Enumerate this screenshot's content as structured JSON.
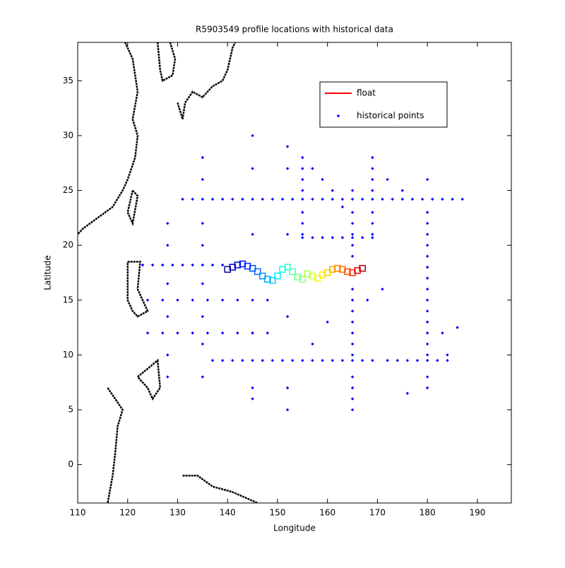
{
  "chart_data": {
    "type": "scatter",
    "title": "R5903549 profile locations with historical data",
    "x_label": "Longitude",
    "y_label": "Latitude",
    "xlim": [
      110,
      196.8
    ],
    "ylim": [
      -3.5,
      38.5
    ],
    "xticks": [
      110,
      120,
      130,
      140,
      150,
      160,
      170,
      180,
      190
    ],
    "yticks": [
      0,
      5,
      10,
      15,
      20,
      25,
      30,
      35
    ],
    "grid": false,
    "legend_position": "upper right",
    "series": [
      {
        "name": "float",
        "color": "#ff0000",
        "x": [
          140,
          141,
          142,
          143,
          144,
          145,
          146,
          147,
          148,
          149,
          150,
          151,
          152,
          153,
          154,
          155,
          156,
          157,
          158,
          159,
          160,
          161,
          162,
          163,
          164,
          165,
          166,
          167
        ],
        "y": [
          17.8,
          18,
          18.2,
          18.3,
          18.1,
          17.9,
          17.6,
          17.2,
          16.9,
          16.8,
          17.2,
          17.8,
          18,
          17.6,
          17.1,
          16.9,
          17.4,
          17.2,
          17,
          17.3,
          17.5,
          17.8,
          17.9,
          17.8,
          17.6,
          17.5,
          17.7,
          17.9
        ],
        "point_colors": [
          "#00008f",
          "#0000bf",
          "#0000ef",
          "#0010ff",
          "#0030ff",
          "#0050ff",
          "#0070ff",
          "#0090ff",
          "#00afff",
          "#00cfff",
          "#00efff",
          "#10ffef",
          "#30ffcf",
          "#50ffaf",
          "#70ff8f",
          "#8fff70",
          "#afff50",
          "#cfff30",
          "#efff10",
          "#ffef00",
          "#ffcf00",
          "#ffaf00",
          "#ff8f00",
          "#ff7000",
          "#ff5000",
          "#ff3000",
          "#ef0000",
          "#af0000"
        ]
      },
      {
        "name": "historical points",
        "color": "#0000ff",
        "x": [
          131,
          133,
          135,
          137,
          139,
          141,
          143,
          145,
          147,
          149,
          151,
          153,
          155,
          157,
          159,
          161,
          163,
          165,
          167,
          169,
          171,
          173,
          175,
          177,
          179,
          181,
          183,
          185,
          187,
          137,
          139,
          141,
          143,
          145,
          147,
          149,
          151,
          153,
          155,
          157,
          159,
          161,
          163,
          165,
          167,
          169,
          172,
          174,
          176,
          178,
          180,
          182,
          184,
          165,
          165,
          165,
          165,
          165,
          165,
          165,
          165,
          165,
          165,
          165,
          165,
          165,
          165,
          165,
          165,
          165,
          180,
          180,
          180,
          180,
          180,
          180,
          180,
          180,
          180,
          180,
          180,
          180,
          180,
          180,
          180,
          180,
          180,
          155,
          157,
          159,
          161,
          163,
          165,
          167,
          169,
          155,
          155,
          155,
          155,
          155,
          155,
          155,
          169,
          169,
          169,
          169,
          169,
          169,
          169,
          123,
          125,
          127,
          129,
          131,
          133,
          135,
          137,
          139,
          124,
          127,
          130,
          133,
          136,
          139,
          142,
          145,
          148,
          124,
          127,
          130,
          133,
          136,
          139,
          142,
          145,
          148,
          128,
          128,
          128,
          128,
          128,
          128,
          135,
          135,
          135,
          135,
          135,
          135,
          135,
          135,
          145,
          145,
          145,
          145,
          145,
          145,
          152,
          152,
          152,
          152,
          152,
          152,
          172,
          175,
          183,
          186,
          184,
          176,
          157,
          160,
          171,
          168,
          157,
          159,
          161,
          163
        ],
        "y": [
          24.2,
          24.2,
          24.2,
          24.2,
          24.2,
          24.2,
          24.2,
          24.2,
          24.2,
          24.2,
          24.2,
          24.2,
          24.2,
          24.2,
          24.2,
          24.2,
          24.2,
          24.2,
          24.2,
          24.2,
          24.2,
          24.2,
          24.2,
          24.2,
          24.2,
          24.2,
          24.2,
          24.2,
          24.2,
          9.5,
          9.5,
          9.5,
          9.5,
          9.5,
          9.5,
          9.5,
          9.5,
          9.5,
          9.5,
          9.5,
          9.5,
          9.5,
          9.5,
          9.5,
          9.5,
          9.5,
          9.5,
          9.5,
          9.5,
          9.5,
          9.5,
          9.5,
          9.5,
          5,
          6,
          7,
          8,
          10,
          11,
          12,
          13,
          14,
          15,
          16,
          19,
          20,
          21,
          22,
          23,
          25,
          7,
          8,
          10,
          11,
          12,
          13,
          14,
          15,
          16,
          17,
          18,
          19,
          20,
          21,
          22,
          23,
          26,
          20.7,
          20.7,
          20.7,
          20.7,
          20.7,
          20.7,
          20.7,
          20.7,
          21,
          22,
          23,
          25,
          26,
          27,
          28,
          21,
          22,
          23,
          25,
          26,
          27,
          28,
          18.2,
          18.2,
          18.2,
          18.2,
          18.2,
          18.2,
          18.2,
          18.2,
          18.2,
          15,
          15,
          15,
          15,
          15,
          15,
          15,
          15,
          15,
          12,
          12,
          12,
          12,
          12,
          12,
          12,
          12,
          12,
          8,
          10,
          13.5,
          16.5,
          20,
          22,
          8,
          11,
          13.5,
          16.5,
          20,
          22,
          26,
          28,
          6,
          7,
          12,
          21,
          27,
          30,
          5,
          7,
          13.5,
          21,
          27,
          29,
          26,
          25,
          12,
          12.5,
          10,
          6.5,
          11,
          13,
          16,
          15,
          27,
          26,
          25,
          23.5
        ]
      }
    ],
    "coastline": {
      "color": "#000000",
      "segments": [
        {
          "x": [
            119.5,
            121,
            122,
            121,
            122,
            121.5,
            120,
            119,
            117,
            114,
            111,
            110
          ],
          "y": [
            38.5,
            37,
            34,
            31.5,
            30,
            28,
            26,
            25,
            23.5,
            22.5,
            21.5,
            21
          ]
        },
        {
          "x": [
            126,
            126.5,
            127,
            129,
            129.5,
            128.5
          ],
          "y": [
            38.5,
            36,
            35,
            35.5,
            37,
            38.5
          ]
        },
        {
          "x": [
            130,
            131,
            131.5,
            133,
            135,
            137,
            139,
            140,
            141,
            141.5
          ],
          "y": [
            33,
            31.5,
            33,
            34,
            33.5,
            34.5,
            35,
            36,
            38,
            38.5
          ]
        },
        {
          "x": [
            121,
            122,
            121,
            120,
            121
          ],
          "y": [
            25,
            24.5,
            22,
            23,
            25
          ]
        },
        {
          "x": [
            120,
            122.5,
            122,
            124,
            122,
            121,
            120,
            120
          ],
          "y": [
            18.5,
            18.5,
            16,
            14,
            13.5,
            14,
            15,
            18.5
          ]
        },
        {
          "x": [
            122,
            126,
            126.5,
            125,
            124,
            122
          ],
          "y": [
            8,
            9.5,
            7,
            6,
            7,
            8
          ]
        },
        {
          "x": [
            116,
            117.5,
            119,
            118,
            117.5,
            117,
            116
          ],
          "y": [
            7,
            6,
            5,
            3.5,
            1,
            -1,
            -3.5
          ]
        },
        {
          "x": [
            131,
            134,
            137,
            141,
            146
          ],
          "y": [
            -1,
            -1,
            -2,
            -2.5,
            -3.5
          ]
        }
      ]
    }
  }
}
